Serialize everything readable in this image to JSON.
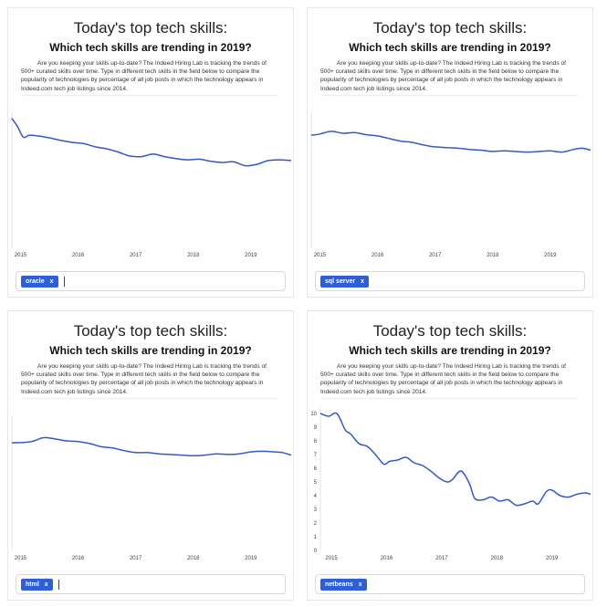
{
  "header": {
    "title": "Today's top tech skills:",
    "subtitle": "Which tech skills are trending in 2019?",
    "description": "Are you keeping your skills up-to-date? The Indeed Hiring Lab is tracking the trends of 500+ curated skills over time. Type in different tech skills in the field below to compare the popularity of technologies by percentage of all job posts in which the technology appears in Indeed.com tech job listings since 2014."
  },
  "colors": {
    "line": "#3558c4",
    "chip": "#2f5fd6"
  },
  "panels": [
    {
      "chip_label": "oracle",
      "chip_remove": "x",
      "show_caret": true
    },
    {
      "chip_label": "sql server",
      "chip_remove": "x",
      "show_caret": false
    },
    {
      "chip_label": "html",
      "chip_remove": "x",
      "show_caret": true
    },
    {
      "chip_label": "netbeans",
      "chip_remove": "x",
      "show_caret": false
    }
  ],
  "chart_data": [
    {
      "type": "line",
      "x_ticks": [
        "2015",
        "2016",
        "2017",
        "2018",
        "2019"
      ],
      "xlim": [
        2014.85,
        2019.7
      ],
      "ylim": [
        0,
        1
      ],
      "show_y_ticks": false,
      "series": [
        {
          "x": [
            2014.85,
            2014.95,
            2015.05,
            2015.15,
            2015.3,
            2015.5,
            2015.7,
            2015.9,
            2016.1,
            2016.3,
            2016.5,
            2016.7,
            2016.9,
            2017.1,
            2017.3,
            2017.5,
            2017.7,
            2017.9,
            2018.1,
            2018.3,
            2018.5,
            2018.7,
            2018.9,
            2019.1,
            2019.3,
            2019.5,
            2019.7
          ],
          "y": [
            0.995,
            0.93,
            0.85,
            0.865,
            0.86,
            0.845,
            0.825,
            0.81,
            0.8,
            0.775,
            0.76,
            0.735,
            0.705,
            0.7,
            0.72,
            0.7,
            0.685,
            0.675,
            0.68,
            0.665,
            0.655,
            0.66,
            0.63,
            0.64,
            0.67,
            0.675,
            0.67
          ]
        }
      ]
    },
    {
      "type": "line",
      "x_ticks": [
        "2015",
        "2016",
        "2017",
        "2018",
        "2019"
      ],
      "xlim": [
        2014.85,
        2019.7
      ],
      "ylim": [
        0,
        1
      ],
      "show_y_ticks": false,
      "series": [
        {
          "x": [
            2014.85,
            2015.0,
            2015.2,
            2015.4,
            2015.6,
            2015.8,
            2016.0,
            2016.2,
            2016.4,
            2016.6,
            2016.8,
            2017.0,
            2017.2,
            2017.4,
            2017.6,
            2017.8,
            2018.0,
            2018.2,
            2018.4,
            2018.6,
            2018.8,
            2019.0,
            2019.2,
            2019.4,
            2019.55,
            2019.7
          ],
          "y": [
            0.865,
            0.875,
            0.895,
            0.88,
            0.885,
            0.87,
            0.86,
            0.84,
            0.82,
            0.81,
            0.79,
            0.775,
            0.77,
            0.765,
            0.755,
            0.75,
            0.74,
            0.745,
            0.74,
            0.735,
            0.74,
            0.745,
            0.735,
            0.755,
            0.765,
            0.75
          ]
        }
      ]
    },
    {
      "type": "line",
      "x_ticks": [
        "2015",
        "2016",
        "2017",
        "2018",
        "2019"
      ],
      "xlim": [
        2014.85,
        2019.7
      ],
      "ylim": [
        0,
        1
      ],
      "show_y_ticks": false,
      "series": [
        {
          "x": [
            2014.85,
            2015.0,
            2015.2,
            2015.4,
            2015.6,
            2015.8,
            2016.0,
            2016.2,
            2016.4,
            2016.6,
            2016.8,
            2017.0,
            2017.2,
            2017.4,
            2017.6,
            2017.8,
            2018.0,
            2018.2,
            2018.4,
            2018.6,
            2018.8,
            2019.0,
            2019.2,
            2019.4,
            2019.55,
            2019.7
          ],
          "y": [
            0.83,
            0.832,
            0.84,
            0.87,
            0.86,
            0.845,
            0.84,
            0.825,
            0.8,
            0.79,
            0.77,
            0.755,
            0.755,
            0.745,
            0.74,
            0.735,
            0.73,
            0.735,
            0.745,
            0.74,
            0.745,
            0.76,
            0.765,
            0.76,
            0.755,
            0.735
          ]
        }
      ]
    },
    {
      "type": "line",
      "x_ticks": [
        "2015",
        "2016",
        "2017",
        "2018",
        "2019"
      ],
      "y_ticks": [
        "10",
        "9",
        "8",
        "7",
        "6",
        "5",
        "4",
        "3",
        "2",
        "1",
        "0"
      ],
      "xlim": [
        2014.8,
        2019.7
      ],
      "ylim": [
        0,
        10
      ],
      "show_y_ticks": true,
      "series": [
        {
          "x": [
            2014.8,
            2014.95,
            2015.1,
            2015.25,
            2015.35,
            2015.5,
            2015.65,
            2015.8,
            2015.95,
            2016.05,
            2016.2,
            2016.35,
            2016.5,
            2016.65,
            2016.8,
            2016.95,
            2017.1,
            2017.2,
            2017.35,
            2017.5,
            2017.6,
            2017.75,
            2017.9,
            2018.05,
            2018.2,
            2018.35,
            2018.5,
            2018.65,
            2018.75,
            2018.9,
            2019.0,
            2019.15,
            2019.3,
            2019.45,
            2019.6,
            2019.7
          ],
          "y": [
            10,
            9.8,
            10,
            8.8,
            8.5,
            7.8,
            7.6,
            7.0,
            6.3,
            6.5,
            6.6,
            6.8,
            6.4,
            6.2,
            5.8,
            5.3,
            5.0,
            5.2,
            5.8,
            4.9,
            3.8,
            3.7,
            3.9,
            3.6,
            3.7,
            3.3,
            3.4,
            3.6,
            3.4,
            4.3,
            4.4,
            4.0,
            3.9,
            4.1,
            4.2,
            4.1
          ]
        }
      ]
    }
  ]
}
